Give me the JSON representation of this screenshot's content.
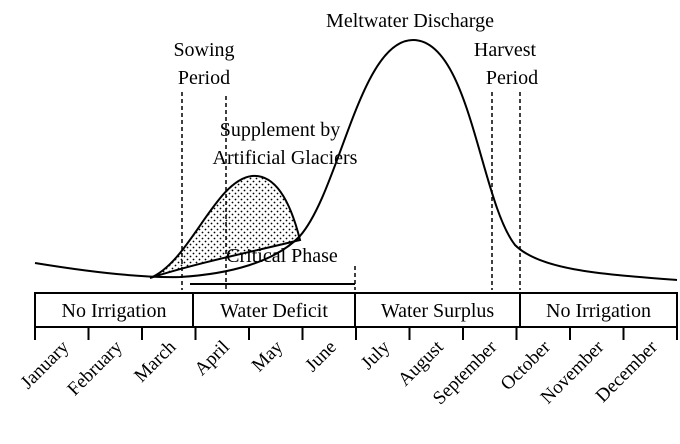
{
  "labels": {
    "meltwater": "Meltwater Discharge",
    "sowing": [
      "Sowing",
      "Period"
    ],
    "harvest": [
      "Harvest",
      "Period"
    ],
    "supplement": [
      "Supplement by",
      "Artificial Glaciers"
    ],
    "critical": "Critical Phase"
  },
  "phases": [
    "No Irrigation",
    "Water Deficit",
    "Water Surplus",
    "No Irrigation"
  ],
  "months": [
    "January",
    "February",
    "March",
    "April",
    "May",
    "June",
    "July",
    "August",
    "September",
    "October",
    "November",
    "December"
  ]
}
